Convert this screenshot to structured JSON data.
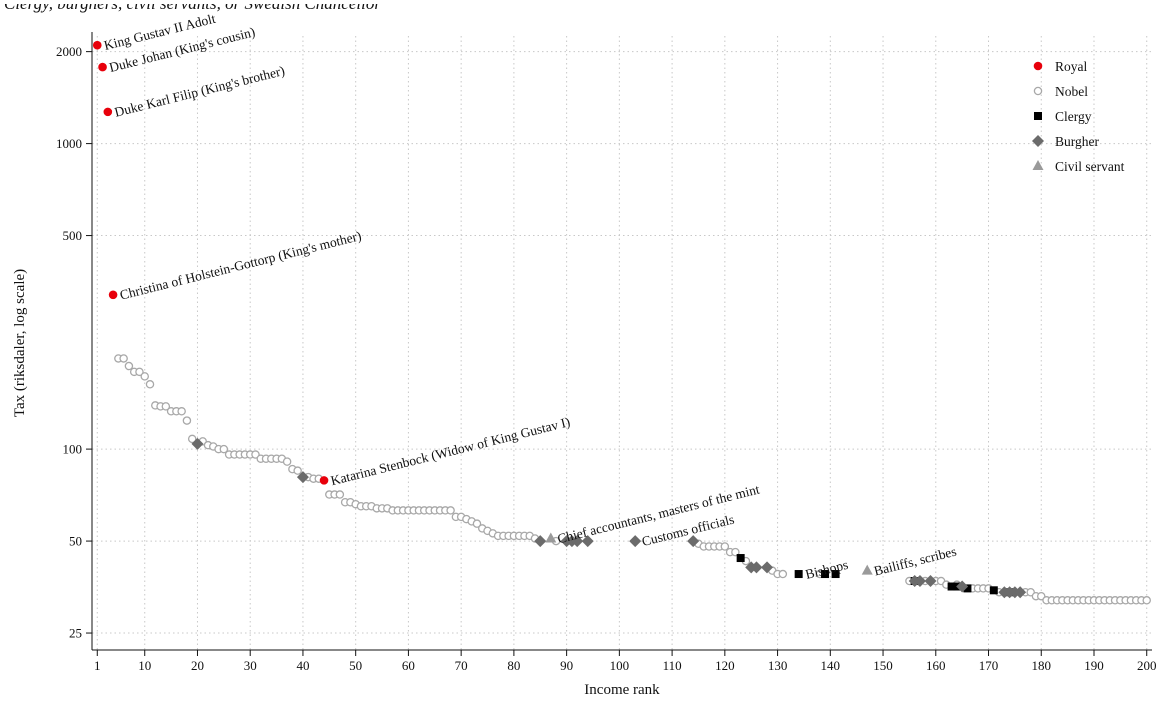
{
  "headline": "Clergy, burghers, civil servants, or Swedish Chancellor",
  "chart_data": {
    "type": "scatter",
    "title": "",
    "xlabel": "Income rank",
    "ylabel": "Tax (riksdaler, log scale)",
    "x_scale": "linear",
    "y_scale": "log",
    "xlim": [
      0,
      201
    ],
    "ylim": [
      22,
      2250
    ],
    "x_ticks": [
      1,
      10,
      20,
      30,
      40,
      50,
      60,
      70,
      80,
      90,
      100,
      110,
      120,
      130,
      140,
      150,
      160,
      170,
      180,
      190,
      200
    ],
    "y_ticks": [
      25,
      50,
      100,
      500,
      1000,
      2000
    ],
    "grid": true,
    "legend_position": "top-right",
    "colors": {
      "royal": "#e8000b",
      "nobel": "#a8a8a8",
      "clergy": "#000000",
      "burgher": "#6b6b6b",
      "civil": "#9a9a9a",
      "grid": "#c8c8c8"
    },
    "series": [
      {
        "name": "Royal",
        "marker": "circle-filled",
        "x": [
          1,
          2,
          3,
          4,
          44
        ],
        "y": [
          2100,
          1780,
          1270,
          320,
          79
        ]
      },
      {
        "name": "Nobel",
        "marker": "circle-open",
        "x": [
          5,
          6,
          7,
          8,
          9,
          10,
          11,
          12,
          13,
          14,
          15,
          16,
          17,
          18,
          19,
          21,
          22,
          23,
          24,
          25,
          26,
          27,
          28,
          29,
          30,
          31,
          32,
          33,
          34,
          35,
          36,
          37,
          38,
          39,
          41,
          42,
          43,
          45,
          46,
          47,
          48,
          49,
          50,
          51,
          52,
          53,
          54,
          55,
          56,
          57,
          58,
          59,
          60,
          61,
          62,
          63,
          64,
          65,
          66,
          67,
          68,
          69,
          70,
          71,
          72,
          73,
          74,
          75,
          76,
          77,
          78,
          79,
          80,
          81,
          82,
          83,
          84,
          88,
          115,
          116,
          117,
          118,
          119,
          120,
          121,
          122,
          124,
          129,
          130,
          131,
          138,
          155,
          158,
          160,
          161,
          162,
          164,
          167,
          168,
          169,
          170,
          172,
          177,
          178,
          179,
          180,
          181,
          182,
          183,
          184,
          185,
          186,
          187,
          188,
          189,
          190,
          191,
          192,
          193,
          194,
          195,
          196,
          197,
          198,
          199,
          200
        ],
        "y": [
          198,
          198,
          187,
          179,
          179,
          173,
          163,
          139,
          138,
          138,
          133,
          133,
          133,
          124,
          108,
          106,
          103,
          102,
          100,
          100,
          96,
          96,
          96,
          96,
          96,
          96,
          93,
          93,
          93,
          93,
          93,
          91,
          86,
          85,
          81,
          80,
          80,
          71,
          71,
          71,
          67,
          67,
          66,
          65,
          65,
          65,
          64,
          64,
          64,
          63,
          63,
          63,
          63,
          63,
          63,
          63,
          63,
          63,
          63,
          63,
          63,
          60,
          60,
          59,
          58,
          57,
          55,
          54,
          53,
          52,
          52,
          52,
          52,
          52,
          52,
          52,
          51,
          50,
          49,
          48,
          48,
          48,
          48,
          48,
          46,
          46,
          43,
          40,
          39,
          39,
          39,
          37,
          37,
          37,
          37,
          36,
          36,
          35,
          35,
          35,
          35,
          34,
          34,
          34,
          33,
          33,
          32,
          32,
          32,
          32,
          32,
          32,
          32,
          32,
          32,
          32,
          32,
          32,
          32,
          32,
          32,
          32,
          32,
          32,
          32,
          32
        ]
      },
      {
        "name": "Clergy",
        "marker": "square",
        "x": [
          123,
          134,
          139,
          141,
          156,
          163,
          164,
          166,
          171,
          174
        ],
        "y": [
          44,
          39,
          39,
          39,
          37,
          35.5,
          35.5,
          35,
          34.5,
          34
        ]
      },
      {
        "name": "Burgher",
        "marker": "diamond",
        "x": [
          20,
          40,
          85,
          90,
          91,
          92,
          94,
          103,
          114,
          125,
          126,
          128,
          156,
          157,
          159,
          165,
          173,
          174,
          175,
          176
        ],
        "y": [
          104,
          81,
          50,
          50,
          50,
          50,
          50,
          50,
          50,
          41,
          41,
          41,
          37,
          37,
          37,
          35.5,
          34,
          34,
          34,
          34
        ]
      },
      {
        "name": "Civil servant",
        "marker": "triangle",
        "x": [
          87,
          147
        ],
        "y": [
          51,
          40
        ]
      }
    ],
    "annotations": [
      {
        "text": "King Gustav II Adolt",
        "x": 1,
        "y": 2100,
        "angle": -14
      },
      {
        "text": "Duke Johan (King's cousin)",
        "x": 2,
        "y": 1780,
        "angle": -14
      },
      {
        "text": "Duke Karl Filip (King's brother)",
        "x": 3,
        "y": 1270,
        "angle": -14
      },
      {
        "text": "Christina of Holstein-Gottorp (King's mother)",
        "x": 4,
        "y": 320,
        "angle": -14
      },
      {
        "text": "Katarina Stenbock (Widow of King Gustav I)",
        "x": 44,
        "y": 79,
        "angle": -14
      },
      {
        "text": "Chief accountants, masters of the mint",
        "x": 87,
        "y": 51,
        "angle": -14
      },
      {
        "text": "Customs officials",
        "x": 103,
        "y": 50,
        "angle": -14
      },
      {
        "text": "Bishops",
        "x": 134,
        "y": 39,
        "angle": -14
      },
      {
        "text": "Bailiffs, scribes",
        "x": 147,
        "y": 40,
        "angle": -14
      }
    ]
  }
}
